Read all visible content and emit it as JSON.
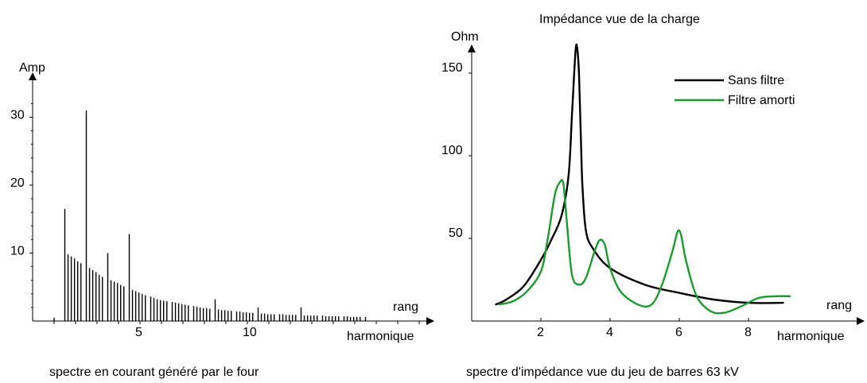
{
  "chart_data": [
    {
      "type": "bar",
      "ylabel": "Amp",
      "xlabel_top": "rang",
      "xlabel_bottom": "harmonique",
      "caption": "spectre en courant généré par le four",
      "y_tick_labels": [
        "10",
        "20",
        "30"
      ],
      "y_ticks": [
        10,
        20,
        30
      ],
      "x_tick_labels": [
        "5",
        "10"
      ],
      "x_ticks": [
        5,
        10
      ],
      "ylim": [
        0,
        35
      ],
      "xlim": [
        0,
        18.5
      ],
      "x": [
        1.0,
        1.5,
        1.65,
        1.8,
        1.95,
        2.1,
        2.25,
        2.5,
        2.65,
        2.8,
        2.95,
        3.1,
        3.25,
        3.5,
        3.65,
        3.8,
        3.95,
        4.1,
        4.25,
        4.5,
        4.65,
        4.8,
        4.95,
        5.1,
        5.25,
        5.5,
        5.65,
        5.8,
        5.95,
        6.1,
        6.25,
        6.5,
        6.65,
        6.8,
        6.95,
        7.1,
        7.25,
        7.5,
        7.65,
        7.8,
        7.95,
        8.1,
        8.25,
        8.5,
        8.65,
        8.8,
        8.95,
        9.1,
        9.25,
        9.5,
        9.65,
        9.8,
        9.95,
        10.1,
        10.25,
        10.5,
        10.65,
        10.8,
        10.95,
        11.1,
        11.25,
        11.5,
        11.65,
        11.8,
        11.95,
        12.1,
        12.25,
        12.5,
        12.65,
        12.8,
        12.95,
        13.1,
        13.25,
        13.5,
        13.65,
        13.8,
        13.95,
        14.1,
        14.25,
        14.5,
        14.65,
        14.8,
        14.95,
        15.1,
        15.25,
        15.5
      ],
      "values": [
        0.5,
        16.5,
        9.8,
        9.5,
        9.2,
        8.8,
        8.5,
        31,
        7.8,
        7.5,
        7.2,
        6.8,
        6.5,
        10,
        6.0,
        5.8,
        5.6,
        5.3,
        5.1,
        12.8,
        4.6,
        4.4,
        4.2,
        4.0,
        3.8,
        3.6,
        3.4,
        3.2,
        3.1,
        3.0,
        2.9,
        2.8,
        2.7,
        2.6,
        2.5,
        2.4,
        2.3,
        2.2,
        2.1,
        2.0,
        1.9,
        1.9,
        1.8,
        3.2,
        1.7,
        1.6,
        1.6,
        1.5,
        1.5,
        1.4,
        1.4,
        1.3,
        1.3,
        1.2,
        1.2,
        2.0,
        1.1,
        1.1,
        1.0,
        1.0,
        1.0,
        1.0,
        1.0,
        0.9,
        0.9,
        0.9,
        0.9,
        2.0,
        0.8,
        0.8,
        0.8,
        0.8,
        0.8,
        0.8,
        0.7,
        0.7,
        0.7,
        0.7,
        0.7,
        0.7,
        0.7,
        0.6,
        0.6,
        0.6,
        0.6,
        0.6
      ]
    },
    {
      "type": "line",
      "title": "Impédance vue de la charge",
      "ylabel": "Ohm",
      "xlabel_top": "rang",
      "xlabel_bottom": "harmonique",
      "caption": "spectre d'impédance vue du jeu de barres 63 kV",
      "y_tick_labels": [
        "50",
        "100",
        "150"
      ],
      "y_ticks": [
        50,
        100,
        150
      ],
      "x_tick_labels": [
        "2",
        "4",
        "6",
        "8"
      ],
      "x_ticks": [
        2,
        4,
        6,
        8
      ],
      "ylim": [
        0,
        170
      ],
      "xlim": [
        0,
        10.5
      ],
      "legend_position": "top-right",
      "series": [
        {
          "name": "Sans filtre",
          "color": "#000000",
          "x": [
            0.7,
            1.0,
            1.5,
            2.0,
            2.3,
            2.6,
            2.8,
            2.9,
            3.0,
            3.05,
            3.1,
            3.15,
            3.2,
            3.3,
            3.5,
            4.0,
            5.0,
            6.0,
            7.0,
            8.0,
            9.0
          ],
          "y": [
            10,
            13,
            21,
            37,
            49,
            64,
            88,
            125,
            163,
            165,
            150,
            115,
            82,
            55,
            44,
            32,
            22,
            17,
            13,
            11,
            11
          ]
        },
        {
          "name": "Filtre amorti",
          "color": "#1a9c2c",
          "x": [
            0.8,
            1.2,
            1.6,
            2.0,
            2.2,
            2.4,
            2.55,
            2.65,
            2.75,
            2.9,
            3.1,
            3.3,
            3.55,
            3.7,
            3.85,
            4.0,
            4.3,
            4.8,
            5.2,
            5.5,
            5.8,
            5.95,
            6.05,
            6.2,
            6.5,
            6.9,
            7.3,
            7.8,
            8.3,
            8.8,
            9.2
          ],
          "y": [
            10,
            12,
            18,
            30,
            50,
            76,
            84,
            83,
            60,
            28,
            22,
            26,
            42,
            49,
            46,
            32,
            18,
            10,
            10,
            22,
            42,
            54,
            52,
            36,
            15,
            6,
            5,
            9,
            14,
            15,
            15
          ]
        }
      ]
    }
  ]
}
